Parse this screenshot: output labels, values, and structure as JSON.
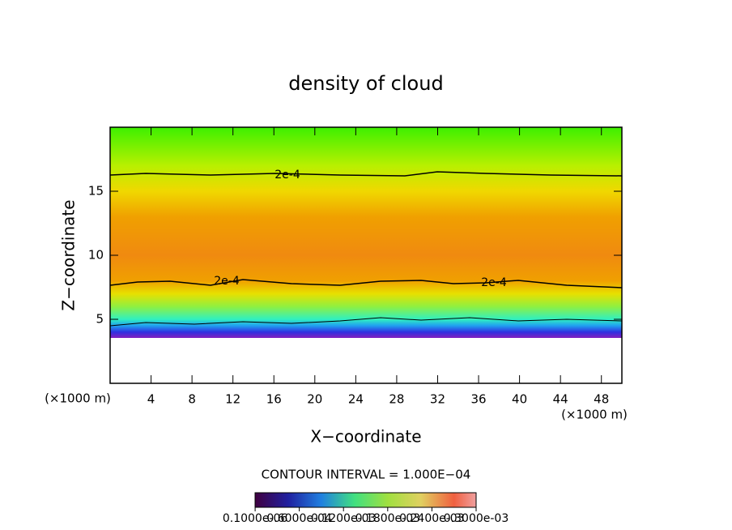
{
  "chart_data": {
    "type": "contour",
    "title": "density of cloud",
    "xlabel": "X−coordinate",
    "ylabel": "Z−coordinate",
    "x_unit_left": "(×1000 m)",
    "x_unit_right": "(×1000 m)",
    "xlim": [
      0,
      50
    ],
    "xticks": [
      4,
      8,
      12,
      16,
      20,
      24,
      28,
      32,
      36,
      40,
      44,
      48
    ],
    "ylim": [
      0,
      20
    ],
    "yticks": [
      5,
      10,
      15
    ],
    "contour_labels": [
      "2e-4",
      "2e-4",
      "2e-4"
    ],
    "contour_interval": "CONTOUR INTERVAL = 1.000E−04",
    "colorbar_ticks": [
      {
        "value": 1e-07,
        "label": "0.1000e-06"
      },
      {
        "value": 6e-05,
        "label": "0.6000e-04"
      },
      {
        "value": 0.00012,
        "label": "0.1200e-03"
      },
      {
        "value": 0.00018,
        "label": "0.1800e-03"
      },
      {
        "value": 0.00024,
        "label": "0.2400e-03"
      },
      {
        "value": 0.0003,
        "label": "0.3000e-03"
      }
    ],
    "colorbar_lim": [
      0,
      0.0003
    ]
  }
}
